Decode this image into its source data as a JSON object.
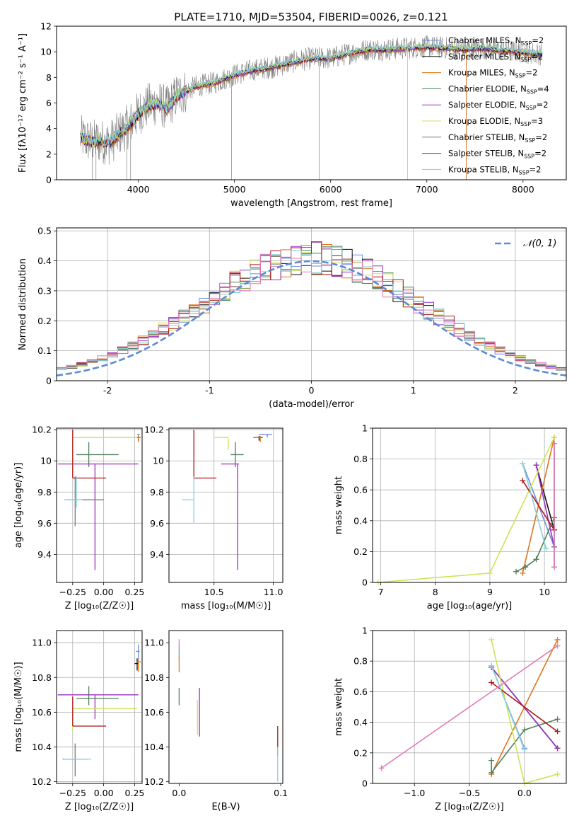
{
  "figure_title": "PLATE=1710, MJD=53504, FIBERID=0026, z=0.121",
  "model_colors": [
    "#6e8fdc",
    "#111111",
    "#e0761f",
    "#4f7f5a",
    "#9a33bf",
    "#cfe255",
    "#7a7a7a",
    "#b01515",
    "#87d1d8"
  ],
  "model_names": [
    "Chabrier MILES",
    "Salpeter MILES",
    "Kroupa MILES",
    "Chabrier ELODIE",
    "Salpeter ELODIE",
    "Kroupa ELODIE",
    "Chabrier STELIB",
    "Salpeter STELIB",
    "Kroupa STELIB"
  ],
  "chart_data": [
    {
      "id": "spectrum",
      "type": "line",
      "xlabel": "wavelength [Angstrom, rest frame]",
      "ylabel": "Flux [fλ10⁻¹⁷ erg cm⁻² s⁻¹ A⁻¹]",
      "xlim": [
        3150,
        8450
      ],
      "ylim": [
        0,
        12
      ],
      "xticks": [
        4000,
        5000,
        6000,
        7000,
        8000
      ],
      "yticks": [
        0,
        2,
        4,
        6,
        8,
        10,
        12
      ],
      "legend_position": "top-right",
      "legend": [
        {
          "label": "Chabrier MILES, N",
          "sub": "SSP",
          "suffix": "=2"
        },
        {
          "label": "Salpeter MILES, N",
          "sub": "SSP",
          "suffix": "=2"
        },
        {
          "label": "Kroupa MILES, N",
          "sub": "SSP",
          "suffix": "=2"
        },
        {
          "label": "Chabrier ELODIE, N",
          "sub": "SSP",
          "suffix": "=4"
        },
        {
          "label": "Salpeter ELODIE, N",
          "sub": "SSP",
          "suffix": "=2"
        },
        {
          "label": "Kroupa ELODIE, N",
          "sub": "SSP",
          "suffix": "=3"
        },
        {
          "label": "Chabrier STELIB, N",
          "sub": "SSP",
          "suffix": "=2"
        },
        {
          "label": "Salpeter STELIB, N",
          "sub": "SSP",
          "suffix": "=2"
        },
        {
          "label": "Kroupa STELIB, N",
          "sub": "SSP",
          "suffix": "=2"
        }
      ],
      "continuum": [
        [
          3400,
          3.3
        ],
        [
          3500,
          3.0
        ],
        [
          3600,
          3.0
        ],
        [
          3700,
          2.9
        ],
        [
          3800,
          3.6
        ],
        [
          3900,
          4.2
        ],
        [
          4000,
          5.2
        ],
        [
          4100,
          5.8
        ],
        [
          4200,
          6.0
        ],
        [
          4300,
          5.6
        ],
        [
          4400,
          6.6
        ],
        [
          4600,
          7.3
        ],
        [
          4800,
          7.6
        ],
        [
          5000,
          8.2
        ],
        [
          5200,
          8.6
        ],
        [
          5400,
          8.8
        ],
        [
          5600,
          9.2
        ],
        [
          5800,
          9.5
        ],
        [
          6000,
          9.5
        ],
        [
          6200,
          9.9
        ],
        [
          6400,
          10.2
        ],
        [
          6600,
          10.2
        ],
        [
          6800,
          10.3
        ],
        [
          7000,
          10.4
        ],
        [
          7200,
          10.3
        ],
        [
          7400,
          10.2
        ],
        [
          7600,
          10.3
        ],
        [
          7800,
          10.1
        ],
        [
          8000,
          10.0
        ],
        [
          8200,
          9.8
        ]
      ],
      "spikes": [
        [
          3520,
          0
        ],
        [
          3560,
          0
        ],
        [
          3880,
          0
        ],
        [
          3920,
          0
        ],
        [
          4970,
          0
        ],
        [
          5880,
          0
        ],
        [
          6800,
          0
        ],
        [
          7410,
          0
        ]
      ]
    },
    {
      "id": "residuals",
      "type": "line",
      "xlabel": "(data-model)/error",
      "ylabel": "Normed distribution",
      "xlim": [
        -2.5,
        2.5
      ],
      "ylim": [
        0,
        0.51
      ],
      "xticks": [
        -2,
        -1,
        0,
        1,
        2
      ],
      "yticks": [
        0.0,
        0.1,
        0.2,
        0.3,
        0.4,
        0.5
      ],
      "grid": true,
      "legend_position": "top-right",
      "legend_label": "𝒩(0, 1)",
      "gaussian_color": "#5b8ad9"
    },
    {
      "id": "age_vs_Z",
      "type": "scatter",
      "xlabel": "Z [log₁₀(Z/Z☉)]",
      "ylabel": "age  [log₁₀(age/yr)]",
      "xlim": [
        -0.38,
        0.31
      ],
      "ylim": [
        9.22,
        10.21
      ],
      "xticks": [
        -0.25,
        0.0,
        0.25
      ],
      "xticklabels": [
        "−0.25",
        "0.00",
        "0.25"
      ],
      "yticks": [
        9.4,
        9.6,
        9.8,
        10.0,
        10.2
      ],
      "grid": true,
      "points": [
        {
          "model": 0,
          "x": 0.28,
          "y": 10.17,
          "xerr": [
            0.01,
            0.01
          ],
          "yerr": [
            0.02,
            0.0
          ]
        },
        {
          "model": 1,
          "x": 0.28,
          "y": 10.15,
          "xerr": [
            0.02,
            0.01
          ],
          "yerr": [
            0.02,
            0.01
          ]
        },
        {
          "model": 2,
          "x": 0.28,
          "y": 10.15,
          "xerr": [
            0.02,
            0.02
          ],
          "yerr": [
            0.03,
            0.01
          ]
        },
        {
          "model": 3,
          "x": -0.12,
          "y": 10.04,
          "xerr": [
            0.1,
            0.24
          ],
          "yerr": [
            0.08,
            0.08
          ]
        },
        {
          "model": 4,
          "x": -0.07,
          "y": 9.98,
          "xerr": [
            0.3,
            0.35
          ],
          "yerr": [
            0.68,
            0.0
          ]
        },
        {
          "model": 5,
          "x": -0.25,
          "y": 10.15,
          "xerr": [
            0.0,
            0.52
          ],
          "yerr": [
            0.23,
            0.0
          ]
        },
        {
          "model": 6,
          "x": -0.23,
          "y": 9.75,
          "xerr": [
            0.08,
            0.23
          ],
          "yerr": [
            0.17,
            0.15
          ]
        },
        {
          "model": 7,
          "x": -0.25,
          "y": 9.89,
          "xerr": [
            0.0,
            0.27
          ],
          "yerr": [
            0.0,
            0.31
          ]
        },
        {
          "model": 8,
          "x": -0.22,
          "y": 9.75,
          "xerr": [
            0.1,
            0.05
          ],
          "yerr": [
            0.05,
            0.15
          ]
        }
      ]
    },
    {
      "id": "age_vs_mass",
      "type": "scatter",
      "xlabel": "mass [log₁₀(M/M☉)]",
      "ylabel": "",
      "xlim": [
        10.12,
        11.08
      ],
      "ylim": [
        9.22,
        10.21
      ],
      "xticks": [
        10.5,
        11.0
      ],
      "xticklabels": [
        "10.5",
        "11.0"
      ],
      "yticks": [
        9.4,
        9.6,
        9.8,
        10.0,
        10.2
      ],
      "grid": true,
      "points": [
        {
          "model": 0,
          "x": 10.95,
          "y": 10.17,
          "xerr": [
            0.07,
            0.04
          ],
          "yerr": [
            0.02,
            0.0
          ]
        },
        {
          "model": 1,
          "x": 10.88,
          "y": 10.15,
          "xerr": [
            0.04,
            0.03
          ],
          "yerr": [
            0.02,
            0.01
          ]
        },
        {
          "model": 2,
          "x": 10.89,
          "y": 10.15,
          "xerr": [
            0.06,
            0.01
          ],
          "yerr": [
            0.03,
            0.01
          ]
        },
        {
          "model": 3,
          "x": 10.68,
          "y": 10.04,
          "xerr": [
            0.04,
            0.07
          ],
          "yerr": [
            0.08,
            0.08
          ]
        },
        {
          "model": 4,
          "x": 10.7,
          "y": 9.98,
          "xerr": [
            0.14,
            0.01
          ],
          "yerr": [
            0.68,
            0.0
          ]
        },
        {
          "model": 5,
          "x": 10.62,
          "y": 10.15,
          "xerr": [
            0.12,
            0.0
          ],
          "yerr": [
            0.08,
            0.0
          ]
        },
        {
          "model": 6,
          "x": 10.33,
          "y": 9.9,
          "xerr": [
            0.0,
            0.0
          ],
          "yerr": [
            0.02,
            0.01
          ]
        },
        {
          "model": 7,
          "x": 10.33,
          "y": 9.89,
          "xerr": [
            0.0,
            0.19
          ],
          "yerr": [
            0.0,
            0.31
          ]
        },
        {
          "model": 8,
          "x": 10.33,
          "y": 9.75,
          "xerr": [
            0.1,
            0.0
          ],
          "yerr": [
            0.15,
            0.15
          ]
        }
      ]
    },
    {
      "id": "weight_vs_age",
      "type": "line",
      "xlabel": "age  [log₁₀(age/yr)]",
      "ylabel": "mass weight",
      "xlim": [
        6.85,
        10.4
      ],
      "ylim": [
        0,
        1
      ],
      "xticks": [
        7,
        8,
        9,
        10
      ],
      "yticks": [
        0.0,
        0.2,
        0.4,
        0.6,
        0.8,
        1.0
      ],
      "grid": true,
      "series": [
        {
          "model": 0,
          "x": [
            9.6,
            10.18
          ],
          "y": [
            0.77,
            0.23
          ]
        },
        {
          "model": 1,
          "x": [
            9.85,
            10.18
          ],
          "y": [
            0.76,
            0.34
          ]
        },
        {
          "model": 2,
          "x": [
            9.6,
            10.18
          ],
          "y": [
            0.06,
            0.94
          ]
        },
        {
          "model": 3,
          "x": [
            9.48,
            9.65,
            9.85,
            10.18
          ],
          "y": [
            0.07,
            0.1,
            0.15,
            0.42
          ]
        },
        {
          "model": 4,
          "x": [
            9.85,
            10.18
          ],
          "y": [
            0.76,
            0.23
          ]
        },
        {
          "model": 5,
          "x": [
            6.95,
            9.0,
            10.18
          ],
          "y": [
            0.0,
            0.06,
            0.94
          ]
        },
        {
          "model": 6,
          "x": [
            10.18,
            10.18
          ],
          "y": [
            0.1,
            0.9
          ]
        },
        {
          "model": 7,
          "x": [
            9.6,
            10.18
          ],
          "y": [
            0.66,
            0.34
          ]
        },
        {
          "model": 8,
          "x": [
            9.6,
            10.03
          ],
          "y": [
            0.77,
            0.22
          ]
        },
        {
          "model": 9,
          "x": [
            10.18,
            10.18
          ],
          "y": [
            0.1,
            0.9
          ]
        }
      ]
    },
    {
      "id": "mass_vs_Z",
      "type": "scatter",
      "xlabel": "Z [log₁₀(Z/Z☉)]",
      "ylabel": "mass [log₁₀(M/M☉)]",
      "xlim": [
        -0.38,
        0.31
      ],
      "ylim": [
        10.19,
        11.07
      ],
      "xticks": [
        -0.25,
        0.0,
        0.25
      ],
      "xticklabels": [
        "−0.25",
        "0.00",
        "0.25"
      ],
      "yticks": [
        10.2,
        10.4,
        10.6,
        10.8,
        11.0
      ],
      "yticklabels": [
        "10.2",
        "10.4",
        "10.6",
        "10.8",
        "11.0"
      ],
      "grid": true,
      "points": [
        {
          "model": 0,
          "x": 0.28,
          "y": 10.95,
          "xerr": [
            0.02,
            0.01
          ],
          "yerr": [
            0.07,
            0.04
          ]
        },
        {
          "model": 1,
          "x": 0.27,
          "y": 10.88,
          "xerr": [
            0.02,
            0.01
          ],
          "yerr": [
            0.04,
            0.03
          ]
        },
        {
          "model": 2,
          "x": 0.28,
          "y": 10.89,
          "xerr": [
            0.02,
            0.02
          ],
          "yerr": [
            0.06,
            0.01
          ]
        },
        {
          "model": 3,
          "x": -0.12,
          "y": 10.68,
          "xerr": [
            0.1,
            0.24
          ],
          "yerr": [
            0.04,
            0.07
          ]
        },
        {
          "model": 4,
          "x": -0.07,
          "y": 10.7,
          "xerr": [
            0.3,
            0.35
          ],
          "yerr": [
            0.14,
            0.0
          ]
        },
        {
          "model": 5,
          "x": -0.25,
          "y": 10.62,
          "xerr": [
            0.0,
            0.52
          ],
          "yerr": [
            0.12,
            0.0
          ]
        },
        {
          "model": 6,
          "x": -0.23,
          "y": 10.33,
          "xerr": [
            0.1,
            0.1
          ],
          "yerr": [
            0.1,
            0.09
          ]
        },
        {
          "model": 7,
          "x": -0.25,
          "y": 10.52,
          "xerr": [
            0.0,
            0.27
          ],
          "yerr": [
            0.0,
            0.17
          ]
        },
        {
          "model": 8,
          "x": -0.22,
          "y": 10.33,
          "xerr": [
            0.1,
            0.12
          ],
          "yerr": [
            0.0,
            0.0
          ]
        }
      ]
    },
    {
      "id": "mass_vs_EBV",
      "type": "scatter",
      "xlabel": "E(B-V)",
      "ylabel": "",
      "xlim": [
        -0.01,
        0.102
      ],
      "ylim": [
        10.19,
        11.07
      ],
      "xticks": [
        0.0,
        0.1
      ],
      "xticklabels": [
        "0.0",
        "0.1"
      ],
      "yticks": [
        10.2,
        10.4,
        10.6,
        10.8,
        11.0
      ],
      "yticklabels": [
        "10.2",
        "10.4",
        "10.6",
        "10.8",
        "11.0"
      ],
      "grid": false,
      "points": [
        {
          "model": 0,
          "x": 0.0,
          "y": 10.95,
          "xerr": [
            0,
            0
          ],
          "yerr": [
            0.04,
            0.04
          ]
        },
        {
          "model": 2,
          "x": 0.0,
          "y": 10.89,
          "xerr": [
            0,
            0
          ],
          "yerr": [
            0.06,
            0.03
          ]
        },
        {
          "model": 3,
          "x": 0.0,
          "y": 10.68,
          "xerr": [
            0,
            0
          ],
          "yerr": [
            0.04,
            0.06
          ]
        },
        {
          "model": 4,
          "x": 0.02,
          "y": 10.6,
          "xerr": [
            0,
            0
          ],
          "yerr": [
            0.14,
            0.14
          ]
        },
        {
          "model": 5,
          "x": 0.018,
          "y": 10.57,
          "xerr": [
            0,
            0
          ],
          "yerr": [
            0.1,
            0.1
          ]
        },
        {
          "model": 7,
          "x": 0.097,
          "y": 10.45,
          "xerr": [
            0,
            0
          ],
          "yerr": [
            0.1,
            0.07
          ]
        },
        {
          "model": 8,
          "x": 0.097,
          "y": 10.3,
          "xerr": [
            0,
            0
          ],
          "yerr": [
            0.1,
            0.1
          ]
        },
        {
          "model": 9,
          "x": 0.0,
          "y": 11.0,
          "xerr": [
            0,
            0
          ],
          "yerr": [
            0.02,
            0.02
          ]
        }
      ]
    },
    {
      "id": "weight_vs_Z",
      "type": "line",
      "xlabel": "Z [log₁₀(Z/Z☉)]",
      "ylabel": "mass weight",
      "xlim": [
        -1.38,
        0.38
      ],
      "ylim": [
        0,
        1
      ],
      "xticks": [
        -1.0,
        -0.5,
        0.0
      ],
      "xticklabels": [
        "−1.0",
        "−0.5",
        "0.0"
      ],
      "yticks": [
        0.0,
        0.2,
        0.4,
        0.6,
        0.8,
        1.0
      ],
      "grid": true,
      "series": [
        {
          "model": 0,
          "x": [
            -0.3,
            0.0
          ],
          "y": [
            0.77,
            0.23
          ]
        },
        {
          "model": 1,
          "x": [
            -0.3,
            0.3
          ],
          "y": [
            0.76,
            0.23
          ]
        },
        {
          "model": 2,
          "x": [
            -0.3,
            0.3
          ],
          "y": [
            0.06,
            0.94
          ]
        },
        {
          "model": 3,
          "x": [
            -0.3,
            -0.3,
            0.0,
            0.3
          ],
          "y": [
            0.15,
            0.07,
            0.35,
            0.42
          ]
        },
        {
          "model": 4,
          "x": [
            -0.3,
            0.3
          ],
          "y": [
            0.76,
            0.23
          ]
        },
        {
          "model": 5,
          "x": [
            -0.3,
            0.0,
            0.3
          ],
          "y": [
            0.94,
            0.0,
            0.06
          ]
        },
        {
          "model": 7,
          "x": [
            -0.3,
            0.3
          ],
          "y": [
            0.66,
            0.34
          ]
        },
        {
          "model": 8,
          "x": [
            -0.3,
            0.0
          ],
          "y": [
            0.77,
            0.22
          ]
        },
        {
          "model": 9,
          "x": [
            -1.3,
            0.3
          ],
          "y": [
            0.1,
            0.9
          ]
        }
      ]
    }
  ]
}
